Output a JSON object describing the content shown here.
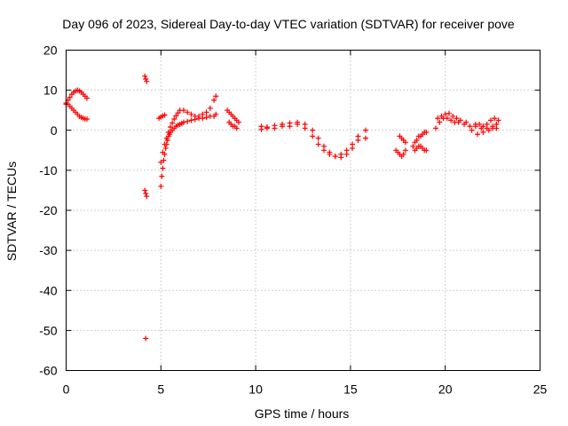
{
  "chart_data": {
    "type": "scatter",
    "title": "Day 096 of 2023, Sidereal Day-to-day VTEC variation (SDTVAR) for receiver pove",
    "xlabel": "GPS time / hours",
    "ylabel": "SDTVAR / TECUs",
    "xlim": [
      0,
      25
    ],
    "ylim": [
      -60,
      20
    ],
    "xticks": [
      0,
      5,
      10,
      15,
      20,
      25
    ],
    "yticks": [
      -60,
      -50,
      -40,
      -30,
      -20,
      -10,
      0,
      10,
      20
    ],
    "grid": true,
    "marker": "+",
    "color": "#ff0000",
    "series": [
      {
        "name": "SDTVAR",
        "segments": [
          {
            "x": [
              0.0,
              0.1,
              0.2,
              0.3,
              0.4,
              0.5,
              0.6,
              0.7,
              0.8,
              0.9,
              1.0,
              1.1
            ],
            "y": [
              6.5,
              7.5,
              8.2,
              9.0,
              9.5,
              9.8,
              10.0,
              9.8,
              9.5,
              9.0,
              8.5,
              8.0
            ]
          },
          {
            "x": [
              0.0,
              0.1,
              0.2,
              0.3,
              0.4,
              0.5,
              0.6,
              0.7,
              0.8,
              0.9,
              1.0,
              1.1
            ],
            "y": [
              6.8,
              6.5,
              6.0,
              5.5,
              5.0,
              4.5,
              4.0,
              3.5,
              3.2,
              3.0,
              2.8,
              2.8
            ]
          },
          {
            "x": [
              4.15,
              4.2,
              4.25
            ],
            "y": [
              13.5,
              12.8,
              12.2
            ]
          },
          {
            "x": [
              4.15,
              4.2,
              4.25
            ],
            "y": [
              -15.0,
              -15.8,
              -16.5
            ]
          },
          {
            "x": [
              4.2
            ],
            "y": [
              -52.0
            ]
          },
          {
            "x": [
              5.0,
              5.05,
              5.1,
              5.15,
              5.2,
              5.25,
              5.3,
              5.35,
              5.4,
              5.45,
              5.5,
              5.6,
              5.7,
              5.8,
              5.9,
              6.0,
              6.1,
              6.2,
              6.4,
              6.6,
              6.8,
              7.0,
              7.2,
              7.4,
              7.6,
              7.8,
              7.9
            ],
            "y": [
              -14.0,
              -11.5,
              -9.5,
              -7.5,
              -6.0,
              -4.5,
              -3.5,
              -2.5,
              -1.5,
              -1.0,
              -0.5,
              0.0,
              0.5,
              1.0,
              1.3,
              1.5,
              1.7,
              2.0,
              2.2,
              2.5,
              2.7,
              3.0,
              3.0,
              3.2,
              3.5,
              3.5,
              4.0
            ]
          },
          {
            "x": [
              5.0,
              5.1,
              5.2,
              5.3,
              5.4,
              5.5,
              5.6,
              5.7,
              5.8,
              5.9,
              6.0,
              6.2,
              6.4,
              6.6,
              6.8,
              7.0,
              7.2,
              7.4,
              7.6,
              7.8,
              7.9
            ],
            "y": [
              -8.0,
              -5.5,
              -3.5,
              -2.0,
              -0.5,
              0.8,
              1.8,
              2.8,
              3.6,
              4.3,
              5.0,
              5.0,
              4.5,
              4.0,
              3.5,
              3.5,
              4.0,
              4.5,
              5.5,
              7.5,
              8.5
            ]
          },
          {
            "x": [
              4.9,
              5.0,
              5.1,
              5.2
            ],
            "y": [
              3.0,
              3.3,
              3.6,
              3.8
            ]
          },
          {
            "x": [
              8.5,
              8.6,
              8.7,
              8.8,
              8.9,
              9.0,
              9.1
            ],
            "y": [
              5.0,
              4.5,
              4.0,
              3.5,
              3.0,
              2.5,
              2.0
            ]
          },
          {
            "x": [
              8.6,
              8.7,
              8.8,
              8.9,
              9.0
            ],
            "y": [
              2.0,
              1.5,
              1.0,
              1.0,
              0.5
            ]
          },
          {
            "x": [
              10.3,
              10.6,
              11.0,
              11.4,
              11.8,
              12.2,
              12.6,
              13.0,
              13.3,
              13.6,
              13.9,
              14.2,
              14.5,
              14.8,
              15.1,
              15.4
            ],
            "y": [
              0.2,
              0.5,
              0.5,
              1.0,
              1.0,
              1.5,
              0.5,
              -1.5,
              -3.5,
              -5.0,
              -6.0,
              -6.5,
              -6.0,
              -5.0,
              -3.5,
              -1.5
            ]
          },
          {
            "x": [
              10.3,
              10.6,
              11.0,
              11.4,
              11.8,
              12.2,
              12.6,
              13.0,
              13.3,
              13.6,
              13.9,
              14.2,
              14.5,
              14.8,
              15.1,
              15.4
            ],
            "y": [
              1.0,
              0.8,
              1.2,
              1.5,
              1.8,
              2.0,
              1.5,
              0.0,
              -2.0,
              -4.0,
              -5.5,
              -6.5,
              -6.8,
              -6.0,
              -4.5,
              -2.5
            ]
          },
          {
            "x": [
              15.8,
              15.8
            ],
            "y": [
              0.0,
              -2.0
            ]
          },
          {
            "x": [
              17.4,
              17.5,
              17.6,
              17.7,
              17.8,
              17.9
            ],
            "y": [
              -5.0,
              -5.5,
              -6.0,
              -6.5,
              -6.0,
              -5.0
            ]
          },
          {
            "x": [
              17.6,
              17.7,
              17.8,
              17.9
            ],
            "y": [
              -1.5,
              -2.0,
              -2.5,
              -3.0
            ]
          },
          {
            "x": [
              18.3,
              18.4,
              18.5,
              18.6,
              18.7,
              18.8,
              18.9,
              19.0
            ],
            "y": [
              -4.0,
              -3.0,
              -2.5,
              -1.5,
              -1.5,
              -1.0,
              -0.5,
              -0.5
            ]
          },
          {
            "x": [
              18.4,
              18.5,
              18.6,
              18.7,
              18.8,
              18.9,
              19.0
            ],
            "y": [
              -5.0,
              -4.5,
              -4.0,
              -4.0,
              -4.5,
              -5.0,
              -5.0
            ]
          },
          {
            "x": [
              19.5,
              19.7,
              19.9,
              20.1,
              20.3,
              20.5,
              20.7,
              21.0,
              21.3,
              21.6,
              21.9,
              22.2,
              22.5,
              22.7
            ],
            "y": [
              0.5,
              2.0,
              3.0,
              3.0,
              2.5,
              2.0,
              2.0,
              1.5,
              1.0,
              1.0,
              0.5,
              0.5,
              1.0,
              1.5
            ]
          },
          {
            "x": [
              19.6,
              19.8,
              20.0,
              20.2,
              20.4,
              20.6,
              20.8,
              21.1,
              21.4,
              21.7,
              22.0,
              22.3,
              22.5,
              22.7
            ],
            "y": [
              3.0,
              3.5,
              4.0,
              4.2,
              3.5,
              3.0,
              2.5,
              2.0,
              0.0,
              -1.0,
              -0.5,
              0.0,
              0.5,
              0.5
            ]
          },
          {
            "x": [
              21.6,
              21.8,
              22.0,
              22.2,
              22.4,
              22.6,
              22.8
            ],
            "y": [
              1.5,
              1.5,
              1.0,
              1.5,
              2.5,
              3.0,
              2.5
            ]
          }
        ]
      }
    ]
  }
}
